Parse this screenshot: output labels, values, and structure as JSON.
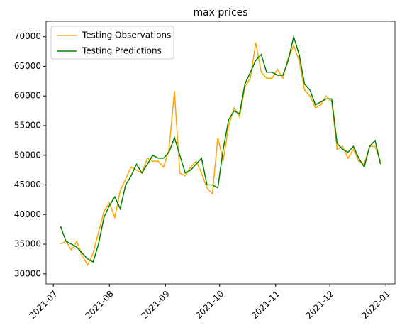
{
  "chart_data": {
    "type": "line",
    "title": "max prices",
    "x": [
      "2021-07-05",
      "2021-07-08",
      "2021-07-11",
      "2021-07-14",
      "2021-07-17",
      "2021-07-20",
      "2021-07-23",
      "2021-07-26",
      "2021-07-29",
      "2021-08-01",
      "2021-08-04",
      "2021-08-07",
      "2021-08-10",
      "2021-08-13",
      "2021-08-16",
      "2021-08-19",
      "2021-08-22",
      "2021-08-25",
      "2021-08-28",
      "2021-08-31",
      "2021-09-03",
      "2021-09-06",
      "2021-09-09",
      "2021-09-12",
      "2021-09-15",
      "2021-09-18",
      "2021-09-21",
      "2021-09-24",
      "2021-09-27",
      "2021-09-30",
      "2021-10-03",
      "2021-10-06",
      "2021-10-09",
      "2021-10-12",
      "2021-10-15",
      "2021-10-18",
      "2021-10-21",
      "2021-10-24",
      "2021-10-27",
      "2021-10-30",
      "2021-11-02",
      "2021-11-05",
      "2021-11-08",
      "2021-11-11",
      "2021-11-14",
      "2021-11-17",
      "2021-11-20",
      "2021-11-23",
      "2021-11-26",
      "2021-11-29",
      "2021-12-02",
      "2021-12-05",
      "2021-12-08",
      "2021-12-11",
      "2021-12-14",
      "2021-12-17",
      "2021-12-20",
      "2021-12-23",
      "2021-12-26",
      "2021-12-29"
    ],
    "series": [
      {
        "name": "Testing Observations",
        "color": "#ffa500",
        "values": [
          35000,
          35500,
          34000,
          35500,
          33000,
          31500,
          33500,
          37000,
          40500,
          42000,
          39500,
          44000,
          46000,
          48000,
          47500,
          47000,
          49500,
          49000,
          49000,
          48000,
          51000,
          60800,
          47000,
          46500,
          48000,
          49000,
          47000,
          44500,
          43500,
          53000,
          49000,
          55000,
          58000,
          56500,
          61500,
          63000,
          69000,
          64000,
          63000,
          63000,
          64500,
          63000,
          66500,
          68500,
          66000,
          61000,
          60000,
          58000,
          58500,
          60000,
          59000,
          51000,
          51500,
          49500,
          51000,
          49000,
          48500,
          51500,
          51500,
          49000
        ]
      },
      {
        "name": "Testing Predictions",
        "color": "#008000",
        "values": [
          38000,
          35500,
          35000,
          34500,
          33500,
          32500,
          32000,
          35000,
          39500,
          41500,
          43000,
          41000,
          45000,
          46500,
          48500,
          47000,
          48500,
          50000,
          49500,
          49500,
          50500,
          53000,
          50000,
          47000,
          47500,
          48500,
          49500,
          45000,
          45000,
          44500,
          51000,
          56000,
          57500,
          57000,
          62000,
          64000,
          66000,
          67000,
          64000,
          64000,
          63500,
          63500,
          66000,
          70000,
          67000,
          62000,
          61000,
          58500,
          59000,
          59500,
          59500,
          52000,
          51000,
          50500,
          51500,
          49500,
          48000,
          51500,
          52500,
          48500
        ]
      }
    ],
    "xlim": [
      "2021-06-27",
      "2022-01-06"
    ],
    "xticks": [
      "2021-07",
      "2021-08",
      "2021-09",
      "2021-10",
      "2021-11",
      "2021-12",
      "2022-01"
    ],
    "ylim": [
      28300,
      72600
    ],
    "yticks": [
      30000,
      35000,
      40000,
      45000,
      50000,
      55000,
      60000,
      65000,
      70000
    ],
    "legend": "upper left"
  }
}
